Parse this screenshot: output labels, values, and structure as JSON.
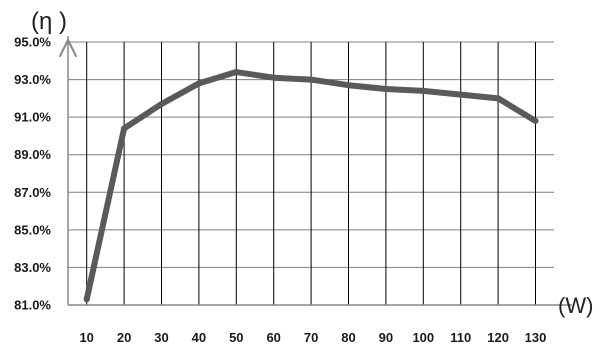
{
  "chart_data": {
    "type": "line",
    "title": "",
    "ylabel": "(η )",
    "xlabel": "(W)",
    "x": [
      10,
      20,
      30,
      40,
      50,
      60,
      70,
      80,
      90,
      100,
      110,
      120,
      130
    ],
    "x_tick_labels": [
      "10",
      "20",
      "30",
      "40",
      "50",
      "60",
      "70",
      "80",
      "90",
      "100",
      "110",
      "120",
      "130"
    ],
    "series": [
      {
        "values": [
          81.3,
          90.4,
          91.7,
          92.8,
          93.4,
          93.1,
          93.0,
          92.7,
          92.5,
          92.4,
          92.2,
          92.0,
          90.8
        ]
      }
    ],
    "ylim": [
      81.0,
      95.0
    ],
    "y_ticks": [
      81.0,
      83.0,
      85.0,
      87.0,
      89.0,
      91.0,
      93.0,
      95.0
    ],
    "y_tick_labels": [
      "81.0%",
      "83.0%",
      "85.0%",
      "87.0%",
      "89.0%",
      "91.0%",
      "93.0%",
      "95.0%"
    ],
    "grid": {
      "horizontal": true,
      "vertical": true
    },
    "legend": "none",
    "colors": {
      "line": "#5a5a5a",
      "grid_horizontal": "#7f7f7f",
      "grid_vertical": "#000000",
      "axis": "#888888",
      "text": "#1a1a1a"
    }
  }
}
